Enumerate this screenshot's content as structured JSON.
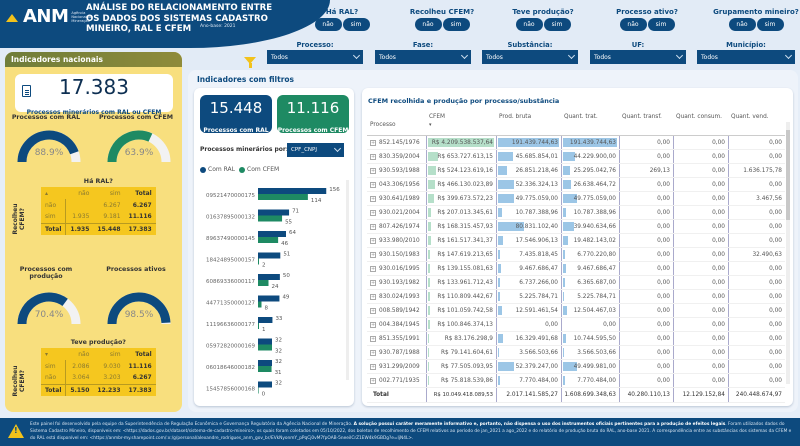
{
  "header": {
    "logo_name": "ANM",
    "logo_sub": "Agência Nacional de Mineração",
    "title": "ANÁLISE DO RELACIONAMENTO ENTRE OS DADOS DOS SISTEMAS CADASTRO MINEIRO, RAL E CFEM",
    "year": "Ano-base: 2021",
    "toggles": [
      {
        "label": "Há RAL?",
        "options": [
          "não",
          "sim"
        ]
      },
      {
        "label": "Recolheu CFEM?",
        "options": [
          "não",
          "sim"
        ]
      },
      {
        "label": "Teve produção?",
        "options": [
          "não",
          "sim"
        ]
      },
      {
        "label": "Processo ativo?",
        "options": [
          "não",
          "sim"
        ]
      },
      {
        "label": "Grupamento mineiro?",
        "options": [
          "não",
          "sim"
        ]
      }
    ],
    "dropdowns": [
      {
        "label": "Processo:",
        "value": "Todos"
      },
      {
        "label": "Fase:",
        "value": "Todos"
      },
      {
        "label": "Substância:",
        "value": "Todos"
      },
      {
        "label": "UF:",
        "value": "Todos"
      },
      {
        "label": "Município:",
        "value": "Todos"
      }
    ]
  },
  "national": {
    "title": "Indicadores nacionais",
    "total": "17.383",
    "total_caption": "Processos minerários com RAL ou CFEM",
    "gauges": [
      {
        "title": "Processos com RAL",
        "value": "88.9%",
        "fraction": 0.889,
        "color": "#0d4a7e"
      },
      {
        "title": "Processos com CFEM",
        "value": "63.9%",
        "fraction": 0.639,
        "color": "#1e8a63"
      },
      {
        "title": "Processos com produção",
        "value": "70.4%",
        "fraction": 0.704,
        "color": "#0d4a7e"
      },
      {
        "title": "Processos ativos",
        "value": "98.5%",
        "fraction": 0.985,
        "color": "#0d4a7e"
      }
    ],
    "crosstab1": {
      "title": "Há RAL?",
      "row_title": "Recolheu CFEM?",
      "cols": [
        "não",
        "sim",
        "Total"
      ],
      "rows": [
        {
          "label": "não",
          "cells": [
            "",
            "6.267",
            "6.267"
          ]
        },
        {
          "label": "sim",
          "cells": [
            "1.935",
            "9.181",
            "11.116"
          ]
        }
      ],
      "total": {
        "label": "Total",
        "cells": [
          "1.935",
          "15.448",
          "17.383"
        ]
      }
    },
    "crosstab2": {
      "title": "Teve produção?",
      "row_title": "Recolheu CFEM?",
      "cols": [
        "não",
        "sim",
        "Total"
      ],
      "rows": [
        {
          "label": "sim",
          "cells": [
            "2.086",
            "9.030",
            "11.116"
          ]
        },
        {
          "label": "não",
          "cells": [
            "3.064",
            "3.203",
            "6.267"
          ]
        }
      ],
      "total": {
        "label": "Total",
        "cells": [
          "5.150",
          "12.233",
          "17.383"
        ]
      }
    }
  },
  "filtered": {
    "title": "Indicadores com filtros",
    "kpis": [
      {
        "value": "15.448",
        "caption": "Processos com RAL",
        "color": "#0d4a7e"
      },
      {
        "value": "11.116",
        "caption": "Processos com CFEM",
        "color": "#1e8a63"
      }
    ],
    "by_label": "Processos minerários por:",
    "by_value": "CPF_CNPJ",
    "legend": [
      {
        "label": "Com RAL",
        "color": "#0d4a7e"
      },
      {
        "label": "Com CFEM",
        "color": "#1e8a63"
      }
    ]
  },
  "chart_data": {
    "type": "bar",
    "orientation": "horizontal",
    "categories": [
      "09521470000175",
      "01637895000132",
      "89637490000145",
      "18424895000157",
      "60869336000117",
      "44771350000127",
      "11196636000177",
      "05972820000169",
      "06018646000182",
      "15457856000168"
    ],
    "series": [
      {
        "name": "Com RAL",
        "values": [
          156,
          71,
          64,
          51,
          50,
          49,
          33,
          32,
          32,
          32
        ]
      },
      {
        "name": "Com CFEM",
        "values": [
          114,
          55,
          46,
          2,
          24,
          8,
          1,
          32,
          31,
          0
        ]
      }
    ],
    "xlim": [
      0,
      160
    ],
    "legend": "top-left"
  },
  "table": {
    "title": "CFEM recolhida e produção por processo/substância",
    "columns": [
      "Processo",
      "CFEM",
      "Prod. bruta",
      "Quant. trat.",
      "Quant. transf.",
      "Quant. consum.",
      "Quant. vend."
    ],
    "rows": [
      {
        "p": "852.145/1976",
        "cfem": "R$ 4.209.538.537,64",
        "cf": 1.0,
        "pb": "191.439.744,63",
        "pbf": 1.0,
        "qt": "191.439.744,63",
        "qtf": 1.0,
        "tr": "0,00",
        "co": "0,00",
        "ve": "0,00"
      },
      {
        "p": "830.359/2004",
        "cfem": "R$ 653.727.613,15",
        "cf": 0.155,
        "pb": "45.685.854,01",
        "pbf": 0.24,
        "qt": "44.229.900,00",
        "qtf": 0.23,
        "tr": "0,00",
        "co": "0,00",
        "ve": "0,00"
      },
      {
        "p": "930.593/1988",
        "cfem": "R$ 524.123.619,16",
        "cf": 0.125,
        "pb": "26.851.218,46",
        "pbf": 0.14,
        "qt": "25.295.042,76",
        "qtf": 0.13,
        "tr": "269,13",
        "co": "0,00",
        "ve": "1.636.175,78"
      },
      {
        "p": "043.306/1956",
        "cfem": "R$ 466.130.023,89",
        "cf": 0.11,
        "pb": "52.336.324,13",
        "pbf": 0.27,
        "qt": "26.638.464,72",
        "qtf": 0.14,
        "tr": "0,00",
        "co": "0,00",
        "ve": "0,00"
      },
      {
        "p": "930.641/1989",
        "cfem": "R$ 399.673.572,23",
        "cf": 0.095,
        "pb": "49.775.059,00",
        "pbf": 0.26,
        "qt": "49.775.059,00",
        "qtf": 0.26,
        "tr": "0,00",
        "co": "0,00",
        "ve": "3.467,56"
      },
      {
        "p": "930.021/2004",
        "cfem": "R$ 207.013.345,61",
        "cf": 0.05,
        "pb": "10.787.388,96",
        "pbf": 0.06,
        "qt": "10.787.388,96",
        "qtf": 0.06,
        "tr": "0,00",
        "co": "0,00",
        "ve": "0,00"
      },
      {
        "p": "807.426/1974",
        "cfem": "R$ 168.315.457,93",
        "cf": 0.04,
        "pb": "80.831.102,40",
        "pbf": 0.42,
        "qt": "39.940.634,66",
        "qtf": 0.21,
        "tr": "0,00",
        "co": "0,00",
        "ve": "0,00"
      },
      {
        "p": "933.980/2010",
        "cfem": "R$ 161.517.341,37",
        "cf": 0.038,
        "pb": "17.546.906,13",
        "pbf": 0.09,
        "qt": "19.482.143,02",
        "qtf": 0.1,
        "tr": "0,00",
        "co": "0,00",
        "ve": "0,00"
      },
      {
        "p": "930.150/1983",
        "cfem": "R$ 147.619.213,65",
        "cf": 0.035,
        "pb": "7.435.818,45",
        "pbf": 0.04,
        "qt": "6.770.220,80",
        "qtf": 0.035,
        "tr": "0,00",
        "co": "0,00",
        "ve": "32.490,63"
      },
      {
        "p": "930.016/1995",
        "cfem": "R$ 139.155.081,63",
        "cf": 0.033,
        "pb": "9.467.686,47",
        "pbf": 0.05,
        "qt": "9.467.686,47",
        "qtf": 0.05,
        "tr": "0,00",
        "co": "0,00",
        "ve": "0,00"
      },
      {
        "p": "930.193/1982",
        "cfem": "R$ 133.961.712,43",
        "cf": 0.032,
        "pb": "6.737.266,00",
        "pbf": 0.035,
        "qt": "6.365.687,00",
        "qtf": 0.033,
        "tr": "0,00",
        "co": "0,00",
        "ve": "0,00"
      },
      {
        "p": "830.024/1993",
        "cfem": "R$ 110.809.442,67",
        "cf": 0.026,
        "pb": "5.225.784,71",
        "pbf": 0.027,
        "qt": "5.225.784,71",
        "qtf": 0.027,
        "tr": "0,00",
        "co": "0,00",
        "ve": "0,00"
      },
      {
        "p": "008.589/1942",
        "cfem": "R$ 101.059.742,58",
        "cf": 0.024,
        "pb": "12.591.461,54",
        "pbf": 0.066,
        "qt": "12.504.467,03",
        "qtf": 0.065,
        "tr": "0,00",
        "co": "0,00",
        "ve": "0,00"
      },
      {
        "p": "004.384/1945",
        "cfem": "R$ 100.846.374,13",
        "cf": 0.024,
        "pb": "0,00",
        "pbf": 0,
        "qt": "0,00",
        "qtf": 0,
        "tr": "0,00",
        "co": "0,00",
        "ve": "0,00"
      },
      {
        "p": "851.355/1991",
        "cfem": "R$ 83.176.298,9",
        "cf": 0.02,
        "pb": "16.329.491,68",
        "pbf": 0.085,
        "qt": "10.744.595,50",
        "qtf": 0.056,
        "tr": "0,00",
        "co": "0,00",
        "ve": "0,00"
      },
      {
        "p": "930.787/1988",
        "cfem": "R$ 79.141.604,61",
        "cf": 0.019,
        "pb": "3.566.503,66",
        "pbf": 0.019,
        "qt": "3.566.503,66",
        "qtf": 0.019,
        "tr": "0,00",
        "co": "0,00",
        "ve": "0,00"
      },
      {
        "p": "931.299/2009",
        "cfem": "R$ 77.505.093,95",
        "cf": 0.018,
        "pb": "52.379.247,00",
        "pbf": 0.27,
        "qt": "49.499.981,00",
        "qtf": 0.26,
        "tr": "0,00",
        "co": "0,00",
        "ve": "0,00"
      },
      {
        "p": "002.771/1935",
        "cfem": "R$ 75.818.539,86",
        "cf": 0.018,
        "pb": "7.770.484,00",
        "pbf": 0.04,
        "qt": "7.770.484,00",
        "qtf": 0.04,
        "tr": "0,00",
        "co": "0,00",
        "ve": "0,00"
      }
    ],
    "total": {
      "label": "Total",
      "cfem": "R$ 10.049.418.089,53",
      "pb": "2.017.141.585,27",
      "qt": "1.608.699.348,63",
      "tr": "40.280.110,13",
      "co": "12.129.152,84",
      "ve": "240.448.674,97"
    }
  },
  "footer": {
    "line1": "Este painel foi desenvolvido pela equipe da Superintendência de Regulação Econômica e Governança Regulatória da Agência Nacional de Mineração.",
    "line1_bold": "A solução possui caráter meramente informativo e, portanto, não dispensa o uso dos instrumentos oficiais pertinentes para a produção de efeitos legais",
    "line2": ". Foram utilizados dados do Sistema Cadastro Mineiro, disponíveis em: <https://dados.gov.br/dataset/sistema-de-cadastro-mineiro>, os quais foram coletados em 05/10/2022, dos boletos de recolhimento de CFEM relativos ao período de jan_2021 a ago_2022 e do relatório de produção bruta do RAL, ano-base 2021. A correspondência entre as substâncias dos sistemas da CFEM e do RAL está disponível em: <https://anmbr-my.sharepoint.com/:x:/g/personal/alexandre_rodrigues_anm_gov_br/EVkNyonmY_pPqCj0vM7fpOAB-5neeiICrZ1EW4k9GBDg?e=IjN4L>."
  }
}
